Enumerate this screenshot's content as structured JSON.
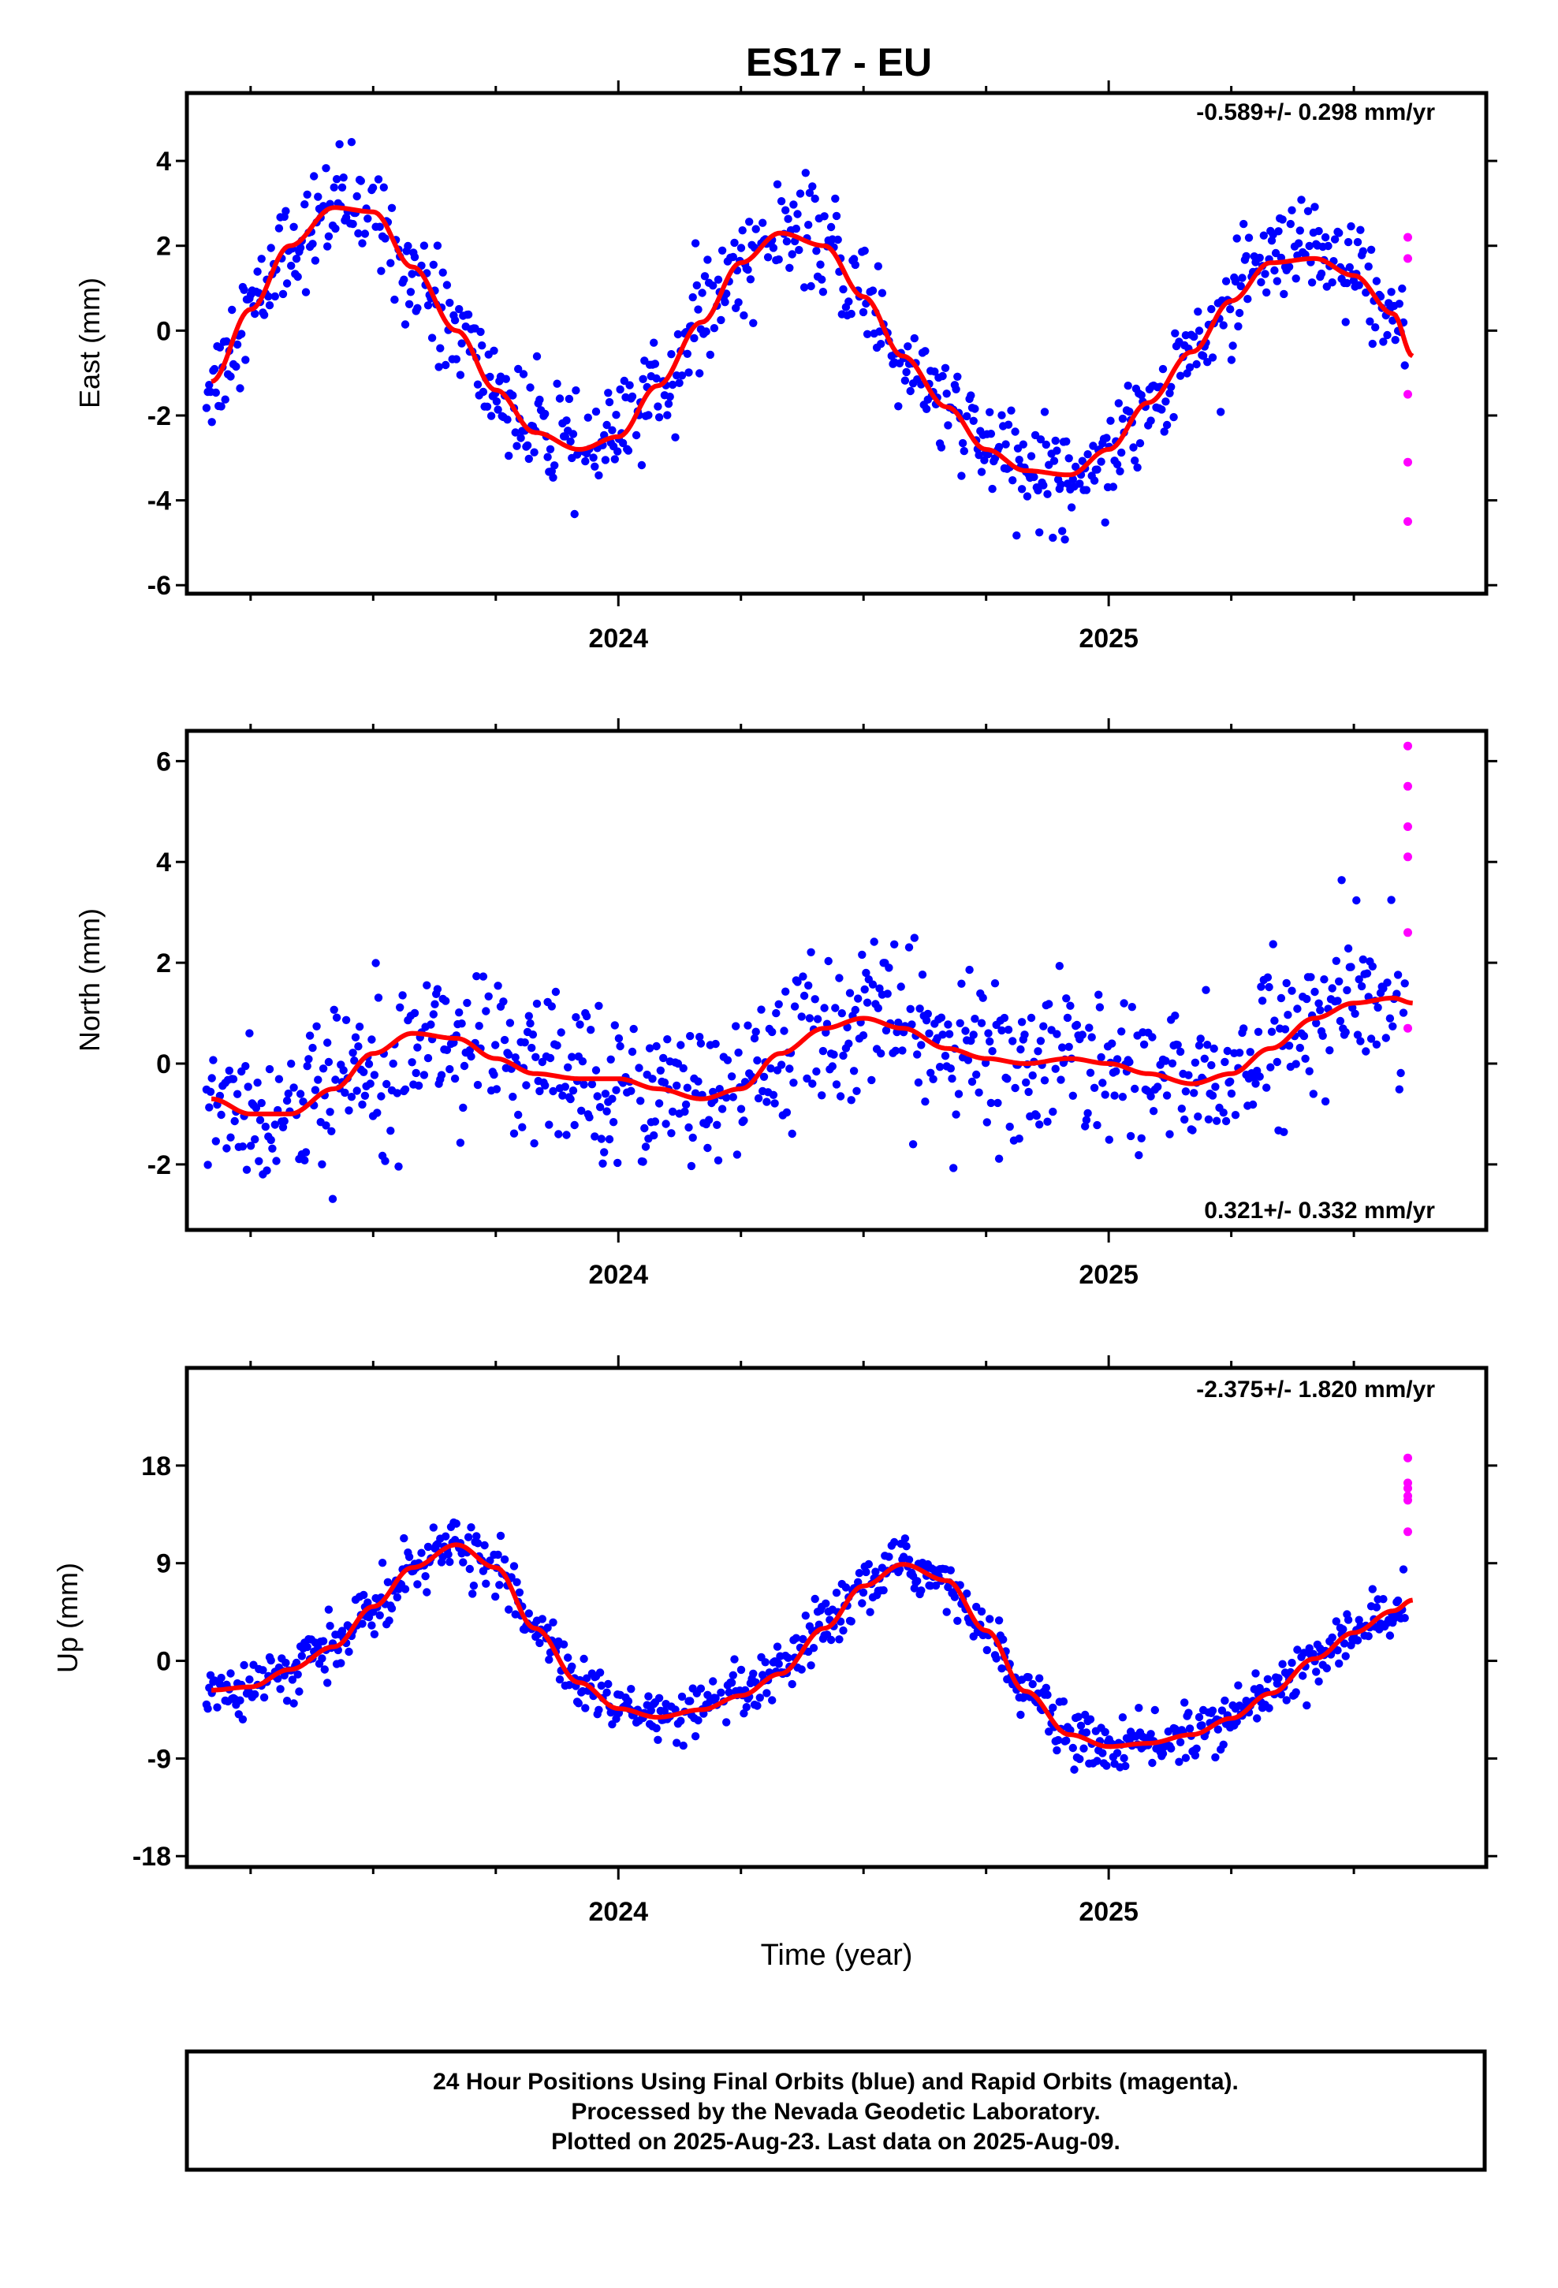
{
  "title": "ES17 - EU",
  "footer": {
    "line1": "24 Hour Positions Using Final Orbits (blue) and Rapid Orbits (magenta).",
    "line2": "Processed by the Nevada Geodetic Laboratory.",
    "line3": "Plotted on 2025-Aug-23. Last data on 2025-Aug-09."
  },
  "colors": {
    "final": "#0000ff",
    "rapid": "#ff00ff",
    "fit": "#ff0000"
  },
  "chart_data": [
    {
      "type": "scatter",
      "panel": "east",
      "ylabel": "East (mm)",
      "xlabel": "",
      "rate_label": "-0.589+/- 0.298 mm/yr",
      "rate_position": "top-right",
      "xlim": [
        2023.12,
        2025.77
      ],
      "ylim": [
        -6.2,
        5.6
      ],
      "yticks": [
        -6,
        -4,
        -2,
        0,
        2,
        4
      ],
      "xticks": [
        2024,
        2025
      ],
      "xtick_labels": [
        "2024",
        "2025"
      ],
      "grid": false,
      "series": [
        {
          "x": [
            2023.17,
            2023.25,
            2023.33,
            2023.42,
            2023.5,
            2023.58,
            2023.67,
            2023.75,
            2023.83,
            2023.92,
            2024.0,
            2024.08,
            2024.17,
            2024.25,
            2024.33,
            2024.42,
            2024.5,
            2024.58,
            2024.67,
            2024.75,
            2024.83,
            2024.92,
            2025.0,
            2025.08,
            2025.17,
            2025.25,
            2025.33,
            2025.42,
            2025.5,
            2025.58,
            2025.62
          ],
          "values": [
            -1.2,
            0.5,
            2.0,
            2.9,
            2.8,
            1.5,
            0.0,
            -1.4,
            -2.4,
            -2.8,
            -2.5,
            -1.3,
            0.2,
            1.6,
            2.3,
            2.0,
            0.8,
            -0.6,
            -1.8,
            -2.8,
            -3.3,
            -3.4,
            -2.8,
            -1.7,
            -0.5,
            0.7,
            1.6,
            1.7,
            1.3,
            0.4,
            -0.6
          ]
        }
      ],
      "rapid": {
        "x": [
          2025.61,
          2025.61,
          2025.61,
          2025.61,
          2025.61
        ],
        "values": [
          2.2,
          1.7,
          -1.5,
          -3.1,
          -4.5
        ]
      }
    },
    {
      "type": "scatter",
      "panel": "north",
      "ylabel": "North (mm)",
      "xlabel": "",
      "rate_label": "0.321+/- 0.332 mm/yr",
      "rate_position": "bottom-right",
      "xlim": [
        2023.12,
        2025.77
      ],
      "ylim": [
        -3.3,
        6.6
      ],
      "yticks": [
        -2,
        0,
        2,
        4,
        6
      ],
      "xticks": [
        2024,
        2025
      ],
      "xtick_labels": [
        "2024",
        "2025"
      ],
      "grid": false,
      "series": [
        {
          "x": [
            2023.17,
            2023.25,
            2023.33,
            2023.42,
            2023.5,
            2023.58,
            2023.67,
            2023.75,
            2023.83,
            2023.92,
            2024.0,
            2024.08,
            2024.17,
            2024.25,
            2024.33,
            2024.42,
            2024.5,
            2024.58,
            2024.67,
            2024.75,
            2024.83,
            2024.92,
            2025.0,
            2025.08,
            2025.17,
            2025.25,
            2025.33,
            2025.42,
            2025.5,
            2025.58,
            2025.62
          ],
          "values": [
            -0.7,
            -1.0,
            -1.0,
            -0.5,
            0.2,
            0.6,
            0.5,
            0.1,
            -0.2,
            -0.3,
            -0.3,
            -0.5,
            -0.7,
            -0.5,
            0.2,
            0.7,
            0.9,
            0.7,
            0.3,
            0.1,
            0.0,
            0.1,
            0.0,
            -0.2,
            -0.4,
            -0.2,
            0.3,
            0.9,
            1.2,
            1.3,
            1.2
          ]
        }
      ],
      "rapid": {
        "x": [
          2025.61,
          2025.61,
          2025.61,
          2025.61,
          2025.61,
          2025.61
        ],
        "values": [
          6.3,
          5.5,
          4.7,
          4.1,
          2.6,
          0.7
        ]
      }
    },
    {
      "type": "scatter",
      "panel": "up",
      "ylabel": "Up (mm)",
      "xlabel": "Time (year)",
      "rate_label": "-2.375+/- 1.820 mm/yr",
      "rate_position": "top-right",
      "xlim": [
        2023.12,
        2025.77
      ],
      "ylim": [
        -19,
        27
      ],
      "yticks": [
        -18,
        -9,
        0,
        9,
        18
      ],
      "xticks": [
        2024,
        2025
      ],
      "xtick_labels": [
        "2024",
        "2025"
      ],
      "grid": false,
      "series": [
        {
          "x": [
            2023.17,
            2023.25,
            2023.33,
            2023.42,
            2023.5,
            2023.58,
            2023.67,
            2023.75,
            2023.83,
            2023.92,
            2024.0,
            2024.08,
            2024.17,
            2024.25,
            2024.33,
            2024.42,
            2024.5,
            2024.58,
            2024.67,
            2024.75,
            2024.83,
            2024.92,
            2025.0,
            2025.08,
            2025.17,
            2025.25,
            2025.33,
            2025.42,
            2025.5,
            2025.58,
            2025.62
          ],
          "values": [
            -2.7,
            -2.4,
            -0.8,
            1.3,
            5.0,
            8.6,
            10.7,
            8.6,
            3.0,
            -2.0,
            -4.4,
            -5.2,
            -4.5,
            -3.2,
            -1.2,
            3.0,
            6.9,
            8.9,
            7.4,
            2.8,
            -2.8,
            -6.8,
            -7.9,
            -7.6,
            -6.8,
            -5.3,
            -3.0,
            0.2,
            2.6,
            4.6,
            5.6
          ]
        }
      ],
      "rapid": {
        "x": [
          2025.61,
          2025.61,
          2025.61,
          2025.61,
          2025.61,
          2025.61
        ],
        "values": [
          18.7,
          16.4,
          15.9,
          15.2,
          14.8,
          11.9
        ]
      }
    }
  ]
}
